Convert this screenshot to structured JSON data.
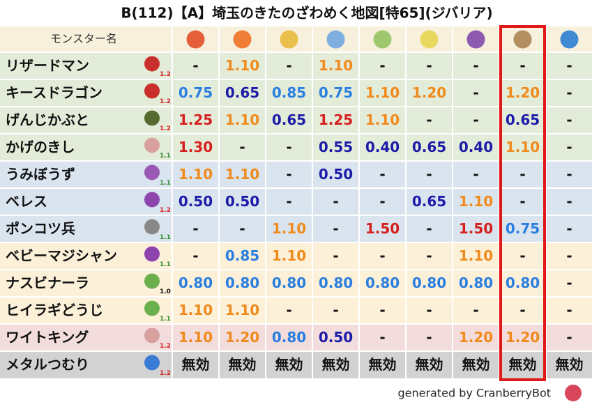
{
  "title": "B(112)【A】埼玉のきたのざわめく地図[特65](ジバリア)",
  "table": {
    "header": "モンスター名",
    "rows": [
      {
        "name": "リザードマン",
        "level": "1.2",
        "cells": [
          "-",
          "1.10",
          "-",
          "1.10",
          "-",
          "-",
          "-",
          "-",
          "-"
        ]
      },
      {
        "name": "キースドラゴン",
        "level": "1.2",
        "cells": [
          "0.75",
          "0.65",
          "0.85",
          "0.75",
          "1.10",
          "1.20",
          "-",
          "1.20",
          "-"
        ]
      },
      {
        "name": "げんじかぶと",
        "level": "1.2",
        "cells": [
          "1.25",
          "1.10",
          "0.65",
          "1.25",
          "1.10",
          "-",
          "-",
          "0.65",
          "-"
        ]
      },
      {
        "name": "かげのきし",
        "level": "1.1",
        "cells": [
          "1.30",
          "-",
          "-",
          "0.55",
          "0.40",
          "0.65",
          "0.40",
          "1.10",
          "-"
        ]
      },
      {
        "name": "うみぼうず",
        "level": "1.1",
        "cells": [
          "1.10",
          "1.10",
          "-",
          "0.50",
          "-",
          "-",
          "-",
          "-",
          "-"
        ]
      },
      {
        "name": "ベレス",
        "level": "1.2",
        "cells": [
          "0.50",
          "0.50",
          "-",
          "-",
          "-",
          "0.65",
          "1.10",
          "-",
          "-"
        ]
      },
      {
        "name": "ポンコツ兵",
        "level": "1.1",
        "cells": [
          "-",
          "-",
          "1.10",
          "-",
          "1.50",
          "-",
          "1.50",
          "0.75",
          "-"
        ]
      },
      {
        "name": "ベビーマジシャン",
        "level": "1.1",
        "cells": [
          "-",
          "0.85",
          "1.10",
          "-",
          "-",
          "-",
          "1.10",
          "-",
          "-"
        ]
      },
      {
        "name": "ナスビナーラ",
        "level": "1.0",
        "cells": [
          "0.80",
          "0.80",
          "0.80",
          "0.80",
          "0.80",
          "0.80",
          "0.80",
          "0.80",
          "-"
        ]
      },
      {
        "name": "ヒイラギどうじ",
        "level": "1.1",
        "cells": [
          "1.10",
          "1.10",
          "-",
          "-",
          "-",
          "-",
          "-",
          "-",
          "-"
        ]
      },
      {
        "name": "ワイトキング",
        "level": "1.2",
        "cells": [
          "1.10",
          "1.20",
          "0.80",
          "0.50",
          "-",
          "-",
          "1.20",
          "1.20",
          "-"
        ]
      },
      {
        "name": "メタルつむり",
        "level": "1.2",
        "cells": [
          "無効",
          "無効",
          "無効",
          "無効",
          "無効",
          "無効",
          "無効",
          "無効",
          "無効"
        ]
      }
    ]
  },
  "footer": "generated by CranberryBot"
}
